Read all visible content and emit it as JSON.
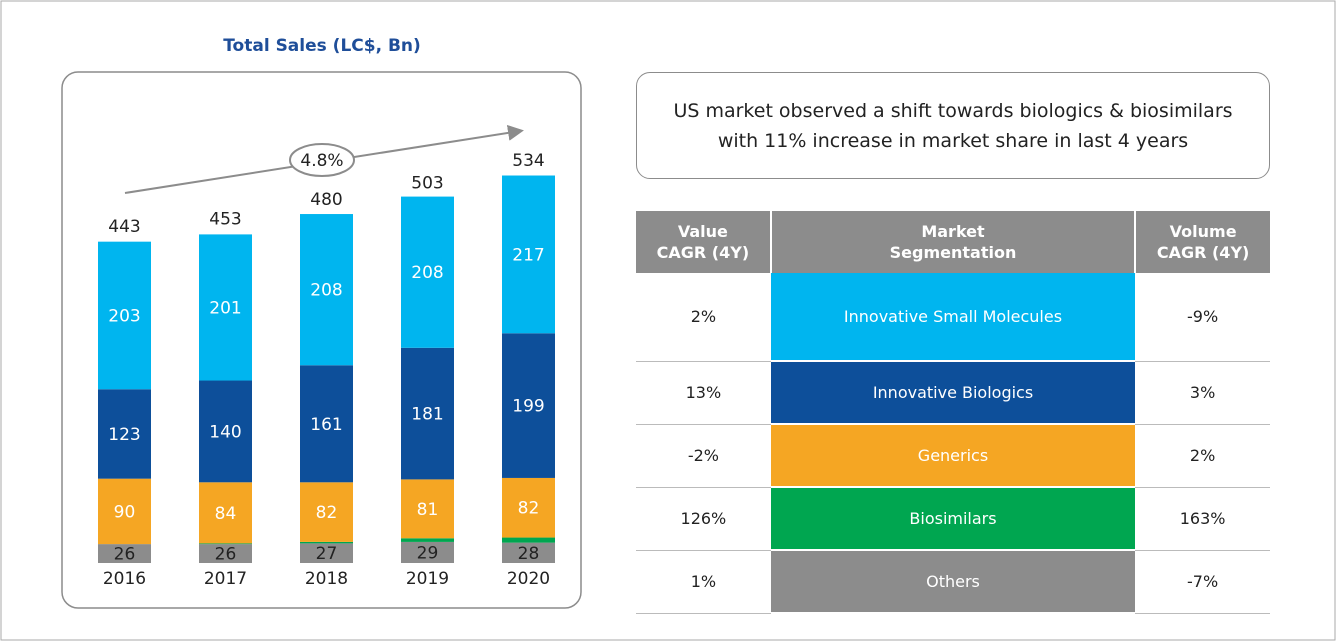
{
  "chart_data": {
    "type": "stacked_bar",
    "title": "Total Sales (LC$, Bn)",
    "categories": [
      "2016",
      "2017",
      "2018",
      "2019",
      "2020"
    ],
    "series": [
      {
        "color": "#8c8c8c",
        "values": [
          26,
          26,
          27,
          29,
          28
        ]
      },
      {
        "color": "#00a650",
        "values": [
          null,
          1,
          2,
          5,
          7
        ]
      },
      {
        "color": "#f5a623",
        "values": [
          90,
          84,
          82,
          81,
          82
        ]
      },
      {
        "color": "#0d4f9a",
        "values": [
          123,
          140,
          161,
          181,
          199
        ]
      },
      {
        "color": "#00b5ef",
        "values": [
          203,
          201,
          208,
          208,
          217
        ]
      }
    ],
    "totals": [
      443,
      453,
      480,
      503,
      534
    ],
    "annotation": "4.8%"
  },
  "callout": [
    "US market observed a shift towards biologics & biosimilars",
    "with 11% increase in market share in last 4 years"
  ],
  "table": {
    "header": [
      [
        "Value",
        "CAGR (4Y)"
      ],
      [
        "Market",
        "Segmentation"
      ],
      [
        "Volume",
        "CAGR (4Y)"
      ]
    ],
    "rows": [
      {
        "value_cagr": "2%",
        "segment": "Innovative Small Molecules",
        "color": "#00b5ef",
        "volume_cagr": "-9%"
      },
      {
        "value_cagr": "13%",
        "segment": "Innovative Biologics",
        "color": "#0d4f9a",
        "volume_cagr": "3%"
      },
      {
        "value_cagr": "-2%",
        "segment": "Generics",
        "color": "#f5a623",
        "volume_cagr": "2%"
      },
      {
        "value_cagr": "126%",
        "segment": "Biosimilars",
        "color": "#00a650",
        "volume_cagr": "163%"
      },
      {
        "value_cagr": "1%",
        "segment": "Others",
        "color": "#8c8c8c",
        "volume_cagr": "-7%"
      }
    ]
  }
}
